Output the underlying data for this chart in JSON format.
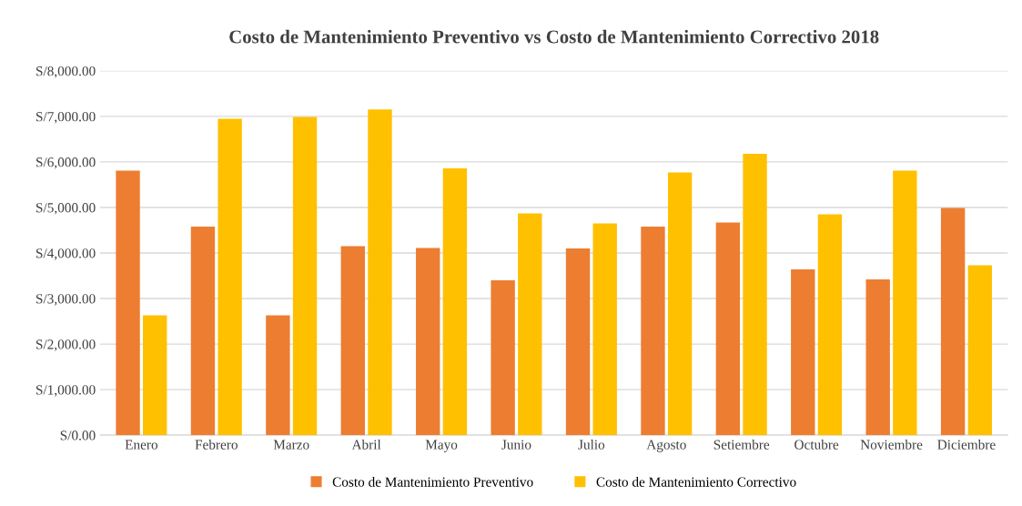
{
  "chart_data": {
    "type": "bar",
    "title": "Costo de Mantenimiento Preventivo vs Costo de Mantenimiento Correctivo 2018",
    "categories": [
      "Enero",
      "Febrero",
      "Marzo",
      "Abril",
      "Mayo",
      "Junio",
      "Julio",
      "Agosto",
      "Setiembre",
      "Octubre",
      "Noviembre",
      "Diciembre"
    ],
    "series": [
      {
        "name": "Costo de Mantenimiento Preventivo",
        "color": "#ed7d31",
        "values": [
          5810,
          4580,
          2630,
          4150,
          4110,
          3400,
          4100,
          4580,
          4670,
          3640,
          3420,
          4990
        ]
      },
      {
        "name": "Costo de Mantenimiento Correctivo",
        "color": "#ffc000",
        "values": [
          2630,
          6950,
          6990,
          7150,
          5860,
          4870,
          4650,
          5770,
          6180,
          4850,
          5810,
          3730
        ]
      }
    ],
    "ylim": [
      0,
      8000
    ],
    "yticks": [
      {
        "value": 0,
        "label": "S/0.00"
      },
      {
        "value": 1000,
        "label": "S/1,000.00"
      },
      {
        "value": 2000,
        "label": "S/2,000.00"
      },
      {
        "value": 3000,
        "label": "S/3,000.00"
      },
      {
        "value": 4000,
        "label": "S/4,000.00"
      },
      {
        "value": 5000,
        "label": "S/5,000.00"
      },
      {
        "value": 6000,
        "label": "S/6,000.00"
      },
      {
        "value": 7000,
        "label": "S/7,000.00"
      },
      {
        "value": 8000,
        "label": "S/8,000.00"
      }
    ],
    "grid": "y",
    "legend": "bottom"
  }
}
